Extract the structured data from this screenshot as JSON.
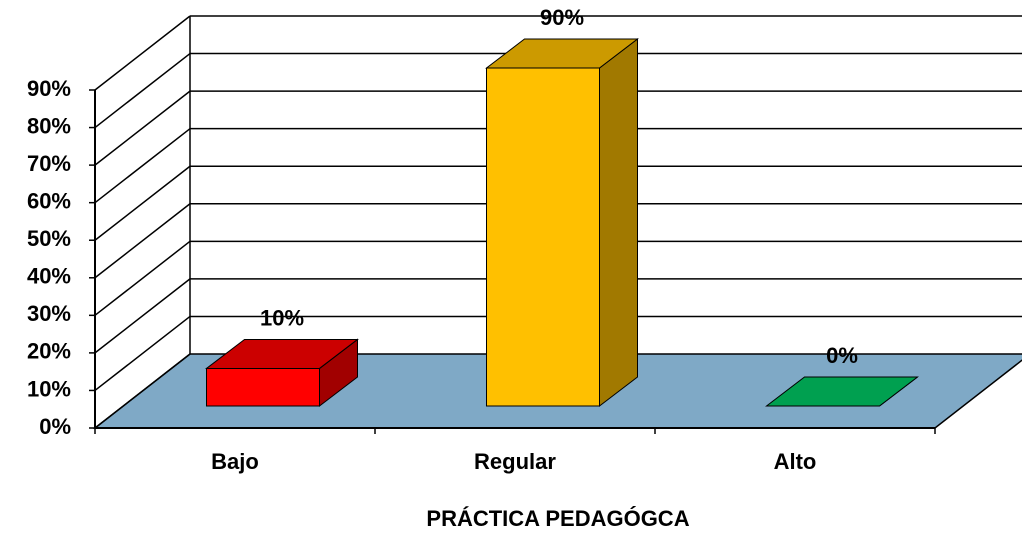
{
  "chart_data": {
    "type": "bar3d",
    "title": "PRÁCTICA PEDAGÓGCA",
    "categories": [
      "Bajo",
      "Regular",
      "Alto"
    ],
    "values": [
      10,
      90,
      0
    ],
    "value_labels": [
      "10%",
      "90%",
      "0%"
    ],
    "colors": [
      "#ff0000",
      "#ffc000",
      "#00a050"
    ],
    "ylim": [
      0,
      90
    ],
    "yticks": [
      {
        "value": 0,
        "label": "0%"
      },
      {
        "value": 10,
        "label": "10%"
      },
      {
        "value": 20,
        "label": "20%"
      },
      {
        "value": 30,
        "label": "30%"
      },
      {
        "value": 40,
        "label": "40%"
      },
      {
        "value": 50,
        "label": "50%"
      },
      {
        "value": 60,
        "label": "60%"
      },
      {
        "value": 70,
        "label": "70%"
      },
      {
        "value": 80,
        "label": "80%"
      },
      {
        "value": 90,
        "label": "90%"
      }
    ],
    "grid": true
  }
}
